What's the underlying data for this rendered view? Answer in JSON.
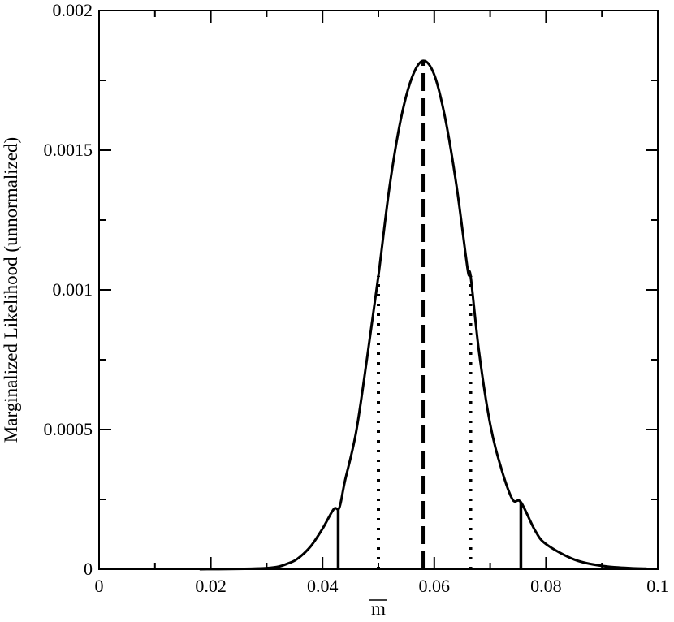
{
  "chart_data": {
    "type": "line",
    "title": "",
    "xlabel": "m",
    "xlabel_overline": true,
    "ylabel": "Marginalized Likelihood (unnormalized)",
    "xlim": [
      0,
      0.1
    ],
    "ylim": [
      0,
      0.002
    ],
    "grid": false,
    "x_ticks": [
      0,
      0.02,
      0.04,
      0.06,
      0.08,
      0.1
    ],
    "x_tick_labels": [
      "0",
      "0.02",
      "0.04",
      "0.06",
      "0.08",
      "0.1"
    ],
    "y_ticks": [
      0,
      0.0005,
      0.001,
      0.0015,
      0.002
    ],
    "y_tick_labels": [
      "0",
      "0.0005",
      "0.001",
      "0.0015",
      "0.002"
    ],
    "series": [
      {
        "style": "solid",
        "color": "#000000",
        "x": [
          0.018,
          0.03,
          0.034,
          0.036,
          0.038,
          0.04,
          0.042,
          0.043,
          0.044,
          0.046,
          0.048,
          0.05,
          0.052,
          0.054,
          0.056,
          0.058,
          0.06,
          0.062,
          0.064,
          0.066,
          0.0665,
          0.068,
          0.07,
          0.072,
          0.074,
          0.0755,
          0.078,
          0.08,
          0.085,
          0.09,
          0.095,
          0.098
        ],
        "y": [
          0.0,
          4e-06,
          2.2e-05,
          4.5e-05,
          8.5e-05,
          0.000145,
          0.000215,
          0.00022,
          0.000315,
          0.00049,
          0.00076,
          0.00105,
          0.00137,
          0.00161,
          0.00176,
          0.00182,
          0.00177,
          0.00161,
          0.00137,
          0.00107,
          0.00105,
          0.00078,
          0.00052,
          0.00036,
          0.00025,
          0.00024,
          0.00014,
          9e-05,
          3.5e-05,
          1.2e-05,
          4e-06,
          2e-06
        ]
      }
    ],
    "vertical_lines": [
      {
        "x": 0.058,
        "y_top": 0.00182,
        "style": "dashed",
        "meaning": "mode"
      },
      {
        "x": 0.05,
        "y_top": 0.00105,
        "style": "dotted"
      },
      {
        "x": 0.0665,
        "y_top": 0.00105,
        "style": "dotted"
      },
      {
        "x": 0.0428,
        "y_top": 0.00022,
        "style": "solid"
      },
      {
        "x": 0.0755,
        "y_top": 0.00024,
        "style": "solid"
      }
    ]
  }
}
